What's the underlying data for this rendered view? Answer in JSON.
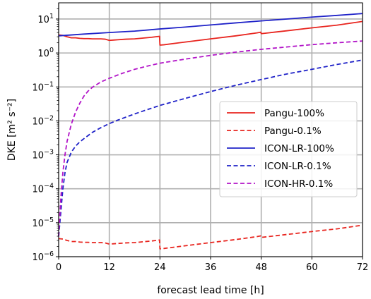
{
  "chart_data": {
    "type": "line",
    "title": "",
    "xlabel": "forecast lead time [h]",
    "ylabel": "DKE [m² s⁻²]",
    "xlim": [
      0,
      72
    ],
    "ylim": [
      1e-06,
      30
    ],
    "yscale": "log",
    "grid": true,
    "legend_position": "center-right",
    "x_ticks": [
      0,
      12,
      24,
      36,
      48,
      60,
      72
    ],
    "y_ticks": [
      {
        "value": 1e-06,
        "base": "10",
        "exp": "−6"
      },
      {
        "value": 1e-05,
        "base": "10",
        "exp": "−5"
      },
      {
        "value": 0.0001,
        "base": "10",
        "exp": "−4"
      },
      {
        "value": 0.001,
        "base": "10",
        "exp": "−3"
      },
      {
        "value": 0.01,
        "base": "10",
        "exp": "−2"
      },
      {
        "value": 0.1,
        "base": "10",
        "exp": "−1"
      },
      {
        "value": 1,
        "base": "10",
        "exp": "0"
      },
      {
        "value": 10,
        "base": "10",
        "exp": "1"
      }
    ],
    "series": [
      {
        "name": "Pangu-100%",
        "color": "#e8251f",
        "dash": "solid",
        "x": [
          0,
          1,
          2,
          3,
          4,
          5,
          6,
          7,
          8,
          9,
          10,
          11,
          12,
          13,
          14,
          15,
          16,
          18,
          20,
          22,
          23,
          23.9,
          24,
          25,
          30,
          36,
          42,
          47,
          47.9,
          48,
          54,
          60,
          66,
          70,
          72
        ],
        "y": [
          3.4,
          3.3,
          3.0,
          2.8,
          2.8,
          2.7,
          2.65,
          2.65,
          2.6,
          2.6,
          2.6,
          2.55,
          2.35,
          2.4,
          2.45,
          2.5,
          2.55,
          2.6,
          2.75,
          2.9,
          3.0,
          3.1,
          1.7,
          1.75,
          2.1,
          2.6,
          3.2,
          3.9,
          4.1,
          3.7,
          4.5,
          5.5,
          6.6,
          7.8,
          8.5
        ]
      },
      {
        "name": "Pangu-0.1%",
        "color": "#e8251f",
        "dash": "dashed",
        "x": [
          0,
          1,
          2,
          3,
          4,
          5,
          6,
          7,
          8,
          9,
          10,
          11,
          12,
          13,
          14,
          15,
          16,
          18,
          20,
          22,
          23,
          23.9,
          24,
          25,
          30,
          36,
          42,
          47,
          47.9,
          48,
          54,
          60,
          66,
          70,
          72
        ],
        "y": [
          3.4e-06,
          3.3e-06,
          3e-06,
          2.8e-06,
          2.8e-06,
          2.7e-06,
          2.65e-06,
          2.65e-06,
          2.6e-06,
          2.6e-06,
          2.6e-06,
          2.55e-06,
          2.35e-06,
          2.4e-06,
          2.45e-06,
          2.5e-06,
          2.55e-06,
          2.6e-06,
          2.75e-06,
          2.9e-06,
          3e-06,
          3.1e-06,
          1.7e-06,
          1.75e-06,
          2.1e-06,
          2.6e-06,
          3.2e-06,
          3.9e-06,
          4.1e-06,
          3.7e-06,
          4.5e-06,
          5.5e-06,
          6.6e-06,
          7.8e-06,
          8.5e-06
        ]
      },
      {
        "name": "ICON-LR-100%",
        "color": "#1f22c8",
        "dash": "solid",
        "x": [
          0,
          6,
          12,
          18,
          24,
          30,
          36,
          42,
          48,
          54,
          60,
          66,
          72
        ],
        "y": [
          3.2,
          3.6,
          4.0,
          4.4,
          5.1,
          5.8,
          6.7,
          7.7,
          8.8,
          10.0,
          11.4,
          12.8,
          14.5
        ]
      },
      {
        "name": "ICON-LR-0.1%",
        "color": "#1f22c8",
        "dash": "dashed",
        "x": [
          0,
          0.5,
          1,
          1.5,
          2,
          3,
          4,
          5,
          6,
          8,
          10,
          12,
          14,
          16,
          18,
          20,
          24,
          30,
          36,
          42,
          48,
          54,
          60,
          66,
          72
        ],
        "y": [
          4e-06,
          2e-05,
          0.0001,
          0.0003,
          0.0006,
          0.0012,
          0.0018,
          0.0024,
          0.003,
          0.0046,
          0.0063,
          0.0083,
          0.0105,
          0.013,
          0.016,
          0.0195,
          0.0285,
          0.046,
          0.073,
          0.112,
          0.165,
          0.24,
          0.33,
          0.46,
          0.62
        ]
      },
      {
        "name": "ICON-HR-0.1%",
        "color": "#b214c8",
        "dash": "dashed",
        "x": [
          0,
          0.5,
          1,
          1.5,
          2,
          3,
          4,
          5,
          6,
          7,
          8,
          10,
          12,
          15,
          18,
          21,
          24,
          30,
          36,
          42,
          48,
          54,
          60,
          66,
          72
        ],
        "y": [
          4e-06,
          5e-05,
          0.0003,
          0.001,
          0.0025,
          0.008,
          0.018,
          0.033,
          0.054,
          0.076,
          0.098,
          0.14,
          0.18,
          0.25,
          0.33,
          0.41,
          0.5,
          0.66,
          0.85,
          1.06,
          1.28,
          1.5,
          1.76,
          2.0,
          2.25
        ]
      }
    ]
  }
}
